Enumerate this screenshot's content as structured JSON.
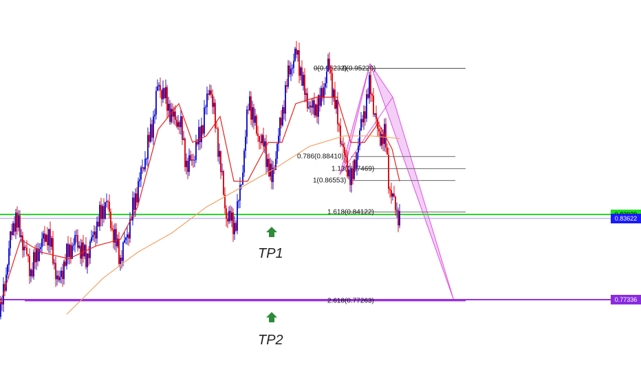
{
  "chart_data": {
    "type": "candlestick",
    "price_boxes": [
      {
        "text": "0.83929",
        "price": 0.83929,
        "bg": "#22dd22",
        "fg": "#000000"
      },
      {
        "text": "0.83622",
        "price": 0.83622,
        "bg": "#1a1aff",
        "fg": "#ffffff"
      },
      {
        "text": "0.77336",
        "price": 0.77336,
        "bg": "#8a2be2",
        "fg": "#ffffff"
      }
    ],
    "horizontal_lines": [
      {
        "price": 0.83929,
        "color": "#22dd22"
      },
      {
        "price": 0.83622,
        "color": "#9999ff"
      },
      {
        "price": 0.77336,
        "color": "#9a2be2"
      }
    ],
    "fib_levels": [
      {
        "label": "0(0.95232)",
        "price": 0.95232
      },
      {
        "label": "0(0.95220)",
        "price": 0.9522
      },
      {
        "label": "0.786(0.88410)",
        "price": 0.8841
      },
      {
        "label": "1.13(0.87469)",
        "price": 0.87469
      },
      {
        "label": "1(0.86553)",
        "price": 0.86553
      },
      {
        "label": "1.618(0.84122)",
        "price": 0.84122
      },
      {
        "label": "2.618(0.77263)",
        "price": 0.77263
      }
    ],
    "targets": [
      {
        "label": "TP1",
        "price": 0.8195
      },
      {
        "label": "TP2",
        "price": 0.7663
      }
    ],
    "price_path": [
      [
        0,
        0.76
      ],
      [
        8,
        0.79
      ],
      [
        15,
        0.82
      ],
      [
        22,
        0.838
      ],
      [
        32,
        0.82
      ],
      [
        45,
        0.795
      ],
      [
        58,
        0.815
      ],
      [
        70,
        0.825
      ],
      [
        85,
        0.785
      ],
      [
        95,
        0.805
      ],
      [
        110,
        0.82
      ],
      [
        125,
        0.805
      ],
      [
        140,
        0.83
      ],
      [
        155,
        0.85
      ],
      [
        162,
        0.83
      ],
      [
        175,
        0.805
      ],
      [
        188,
        0.83
      ],
      [
        200,
        0.86
      ],
      [
        212,
        0.885
      ],
      [
        222,
        0.91
      ],
      [
        230,
        0.94
      ],
      [
        240,
        0.93
      ],
      [
        250,
        0.915
      ],
      [
        262,
        0.91
      ],
      [
        272,
        0.875
      ],
      [
        282,
        0.885
      ],
      [
        295,
        0.91
      ],
      [
        305,
        0.94
      ],
      [
        318,
        0.89
      ],
      [
        328,
        0.84
      ],
      [
        342,
        0.83
      ],
      [
        352,
        0.87
      ],
      [
        362,
        0.93
      ],
      [
        372,
        0.905
      ],
      [
        385,
        0.89
      ],
      [
        395,
        0.865
      ],
      [
        408,
        0.91
      ],
      [
        420,
        0.95
      ],
      [
        432,
        0.965
      ],
      [
        442,
        0.935
      ],
      [
        452,
        0.92
      ],
      [
        465,
        0.925
      ],
      [
        478,
        0.956
      ],
      [
        490,
        0.915
      ],
      [
        502,
        0.88
      ],
      [
        512,
        0.865
      ],
      [
        524,
        0.905
      ],
      [
        538,
        0.94
      ],
      [
        550,
        0.9
      ],
      [
        560,
        0.9
      ],
      [
        566,
        0.86
      ],
      [
        572,
        0.85
      ],
      [
        581,
        0.836
      ]
    ],
    "ma_fast": [
      [
        0,
        0.77
      ],
      [
        30,
        0.82
      ],
      [
        60,
        0.81
      ],
      [
        100,
        0.805
      ],
      [
        140,
        0.815
      ],
      [
        175,
        0.82
      ],
      [
        200,
        0.845
      ],
      [
        230,
        0.905
      ],
      [
        260,
        0.925
      ],
      [
        280,
        0.895
      ],
      [
        300,
        0.9
      ],
      [
        320,
        0.915
      ],
      [
        340,
        0.865
      ],
      [
        360,
        0.865
      ],
      [
        390,
        0.895
      ],
      [
        410,
        0.895
      ],
      [
        430,
        0.925
      ],
      [
        460,
        0.93
      ],
      [
        490,
        0.93
      ],
      [
        510,
        0.895
      ],
      [
        530,
        0.895
      ],
      [
        550,
        0.91
      ],
      [
        570,
        0.89
      ],
      [
        581,
        0.865
      ]
    ],
    "ma_slow": [
      [
        97,
        0.762
      ],
      [
        150,
        0.79
      ],
      [
        200,
        0.81
      ],
      [
        250,
        0.825
      ],
      [
        300,
        0.845
      ],
      [
        350,
        0.86
      ],
      [
        400,
        0.875
      ],
      [
        450,
        0.892
      ],
      [
        500,
        0.9
      ],
      [
        540,
        0.9
      ],
      [
        581,
        0.898
      ]
    ],
    "harmonic_pattern": [
      [
        494,
        0.87
      ],
      [
        538,
        0.956
      ],
      [
        571,
        0.93
      ],
      [
        660,
        0.77263
      ]
    ]
  }
}
